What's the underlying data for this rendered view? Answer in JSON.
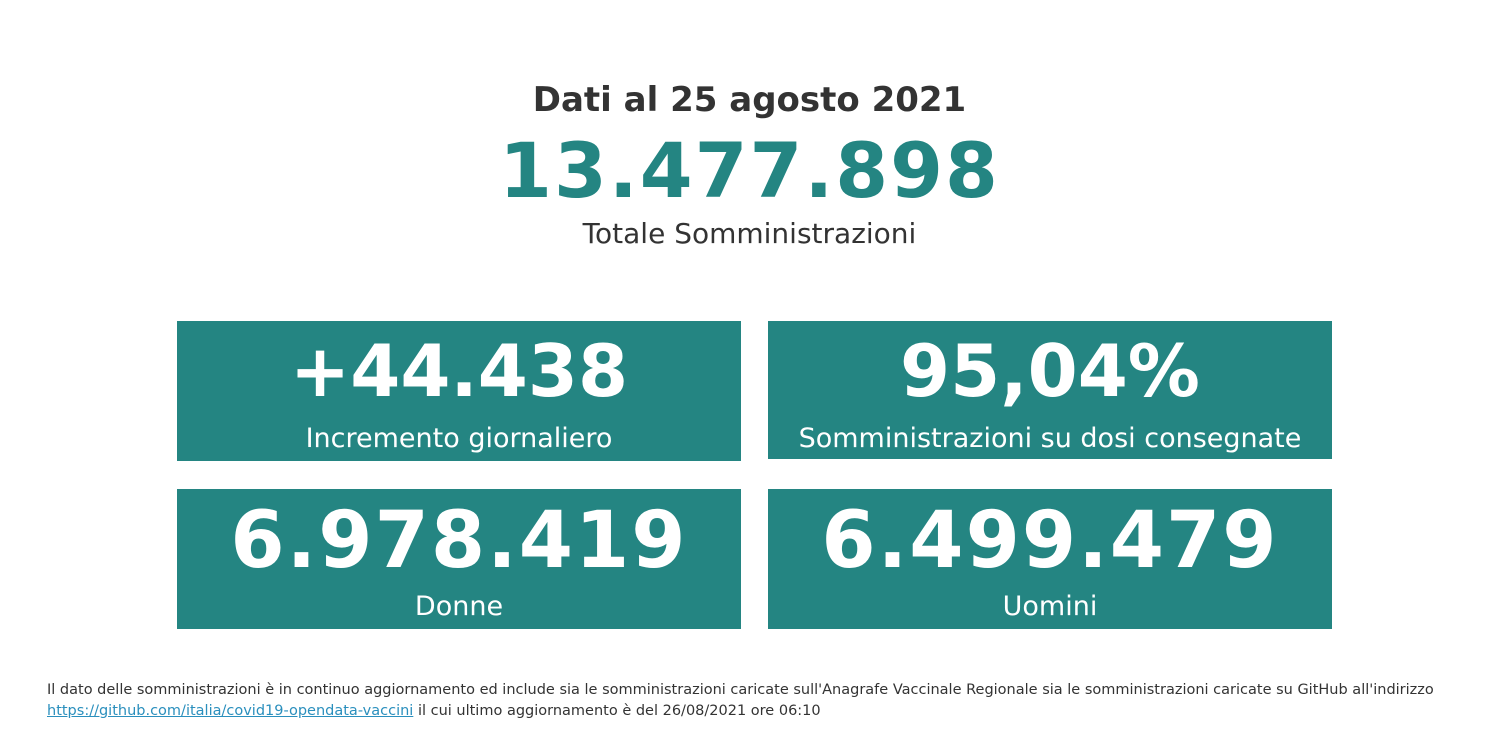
{
  "header": {
    "date_title": "Dati al 25 agosto 2021",
    "total_value": "13.477.898",
    "total_label": "Totale Somministrazioni"
  },
  "cards": [
    {
      "value": "+44.438",
      "label": "Incremento giornaliero"
    },
    {
      "value": "95,04%",
      "label": "Somministrazioni su dosi consegnate"
    },
    {
      "value": "6.978.419",
      "label": "Donne"
    },
    {
      "value": "6.499.479",
      "label": "Uomini"
    }
  ],
  "footer": {
    "text_before_link": "Il dato delle somministrazioni è in continuo aggiornamento ed include sia le somministrazioni caricate sull'Anagrafe Vaccinale Regionale sia le somministrazioni caricate su GitHub all'indirizzo",
    "link_text": "https://github.com/italia/covid19-opendata-vaccini",
    "text_after_link": "il cui ultimo aggiornamento è del 26/08/2021 ore 06:10"
  },
  "colors": {
    "accent": "#248582",
    "text": "#333333",
    "link": "#2a8fbd",
    "card_text": "#ffffff"
  }
}
